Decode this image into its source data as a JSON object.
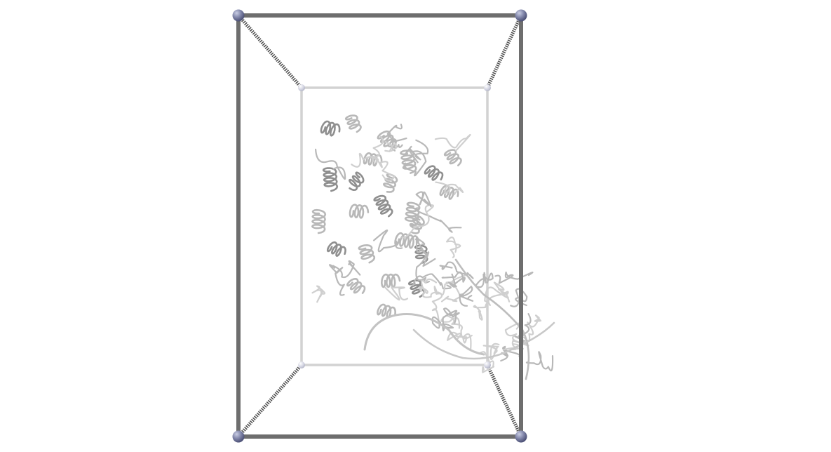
{
  "scene": {
    "background_color": "#ffffff",
    "box_near_edge_color": "#6e6e6e",
    "box_far_edge_color": "#d2d2d2",
    "corner_near_color": "#7f84a8",
    "corner_far_color": "#d6d7e4",
    "ribbon_color": "#b8b8b8",
    "ribbon_dark_color": "#8f8f8f",
    "near_corner_icon": "sphere-icon",
    "far_corner_icon": "sphere-icon"
  }
}
